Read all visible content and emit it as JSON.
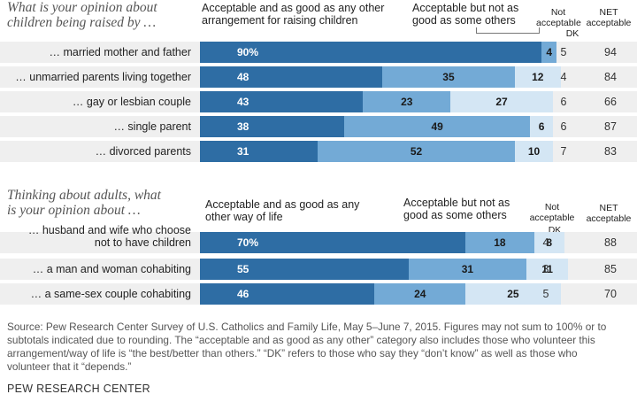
{
  "chart_data": [
    {
      "type": "bar",
      "title": "What is your opinion about children being raised by …",
      "series_labels": {
        "acceptable_as_good": "Acceptable and as good as any other arrangement for raising children",
        "acceptable_not_as_good": "Acceptable but not as good as some others",
        "not_acceptable": "Not acceptable",
        "dk": "DK",
        "net": "NET acceptable"
      },
      "rows": [
        {
          "label": "… married mother and father",
          "good": 90,
          "good_label": "90%",
          "not_as_good": 4,
          "not_as_good_label": "4",
          "not_acceptable": null,
          "not_acceptable_label": "",
          "dk": "5",
          "net": "94"
        },
        {
          "label": "… unmarried parents living together",
          "good": 48,
          "good_label": "48",
          "not_as_good": 35,
          "not_as_good_label": "35",
          "not_acceptable": 12,
          "not_acceptable_label": "12",
          "dk": "4",
          "net": "84"
        },
        {
          "label": "… gay or lesbian couple",
          "good": 43,
          "good_label": "43",
          "not_as_good": 23,
          "not_as_good_label": "23",
          "not_acceptable": 27,
          "not_acceptable_label": "27",
          "dk": "6",
          "net": "66"
        },
        {
          "label": "… single parent",
          "good": 38,
          "good_label": "38",
          "not_as_good": 49,
          "not_as_good_label": "49",
          "not_acceptable": 6,
          "not_acceptable_label": "6",
          "dk": "6",
          "net": "87"
        },
        {
          "label": "… divorced parents",
          "good": 31,
          "good_label": "31",
          "not_as_good": 52,
          "not_as_good_label": "52",
          "not_acceptable": 10,
          "not_acceptable_label": "10",
          "dk": "7",
          "net": "83"
        }
      ]
    },
    {
      "type": "bar",
      "title": "Thinking about adults, what is your opinion about …",
      "series_labels": {
        "acceptable_as_good": "Acceptable and as good as any other way of life",
        "acceptable_not_as_good": "Acceptable but not as good as some others",
        "not_acceptable": "Not acceptable",
        "dk": "DK",
        "net": "NET acceptable"
      },
      "rows": [
        {
          "label": "… husband and wife who choose not to have children",
          "label_line1": "… husband and wife who choose",
          "label_line2": "not to have children",
          "good": 70,
          "good_label": "70%",
          "not_as_good": 18,
          "not_as_good_label": "18",
          "not_acceptable": 8,
          "not_acceptable_label": "8",
          "dk": "4",
          "net": "88"
        },
        {
          "label": "… a man and woman cohabiting",
          "good": 55,
          "good_label": "55",
          "not_as_good": 31,
          "not_as_good_label": "31",
          "not_acceptable": 11,
          "not_acceptable_label": "11",
          "dk": "3",
          "net": "85"
        },
        {
          "label": "… a same-sex couple cohabiting",
          "good": 46,
          "good_label": "46",
          "not_as_good": 24,
          "not_as_good_label": "24",
          "not_acceptable": 25,
          "not_acceptable_label": "25",
          "dk": "5",
          "net": "70"
        }
      ]
    }
  ],
  "text": {
    "q1_line1": "What is your opinion about",
    "q1_line2": "children being raised by …",
    "h1_good_line1": "Acceptable and as good as any other",
    "h1_good_line2": "arrangement for raising children",
    "h1_notgood_line1": "Acceptable but not as",
    "h1_notgood_line2": "good as some others",
    "h1_notacc_line1": "Not",
    "h1_notacc_line2": "acceptable",
    "h1_dk": "DK",
    "h1_net_line1": "NET",
    "h1_net_line2": "acceptable",
    "q2_line1": "Thinking about adults, what",
    "q2_line2": "is your opinion about …",
    "h2_good_line1": "Acceptable and as good as any",
    "h2_good_line2": "other way of life",
    "h2_notgood_line1": "Acceptable but not as",
    "h2_notgood_line2": "good as some others",
    "h2_notacc_line1": "Not",
    "h2_notacc_line2": "acceptable",
    "h2_dk": "DK",
    "h2_net_line1": "NET",
    "h2_net_line2": "acceptable",
    "source_line1": "Source: Pew Research Center Survey of U.S. Catholics and Family Life, May 5–June 7, 2015. Figures may not sum to 100% or to",
    "source_line2": "subtotals indicated due to rounding. The “acceptable and as good as any other” category also includes those who volunteer this",
    "source_line3": "arrangement/way of life is “the best/better than others.” “DK” refers to those who say they “don’t know” as well as those who",
    "source_line4": "volunteer that it “depends.”",
    "brand": "PEW RESEARCH CENTER"
  }
}
